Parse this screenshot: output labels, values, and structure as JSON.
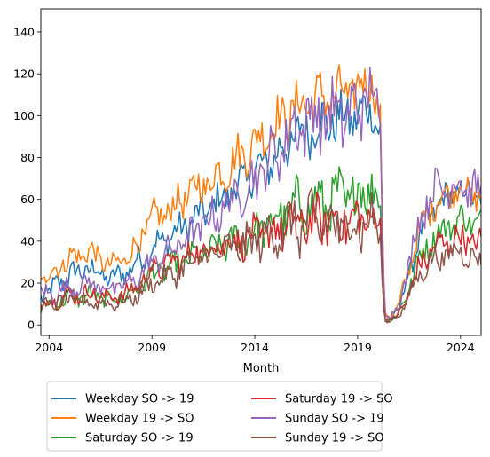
{
  "chart_data": {
    "type": "line",
    "xlabel": "Month",
    "ylabel": "",
    "xlim": [
      2003.6,
      2025.0
    ],
    "ylim": [
      -5,
      151
    ],
    "xticks": [
      {
        "value": 2004,
        "label": "2004"
      },
      {
        "value": 2009,
        "label": "2009"
      },
      {
        "value": 2014,
        "label": "2014"
      },
      {
        "value": 2019,
        "label": "2019"
      },
      {
        "value": 2024,
        "label": "2024"
      }
    ],
    "yticks": [
      {
        "value": 0,
        "label": "0"
      },
      {
        "value": 20,
        "label": "20"
      },
      {
        "value": 40,
        "label": "40"
      },
      {
        "value": 60,
        "label": "60"
      },
      {
        "value": 80,
        "label": "80"
      },
      {
        "value": 100,
        "label": "100"
      },
      {
        "value": 120,
        "label": "120"
      },
      {
        "value": 140,
        "label": "140"
      }
    ],
    "grid": false,
    "legend_position": "bottom",
    "legend_columns": 2,
    "series": [
      {
        "name": "Weekday SO -> 19",
        "color": "#1f77b4",
        "x": [
          2003.6,
          2004,
          2005,
          2006,
          2007,
          2008,
          2009,
          2010,
          2011,
          2012,
          2013,
          2014,
          2015,
          2016,
          2017,
          2018,
          2019,
          2019.7,
          2020.1,
          2020.3,
          2020.6,
          2021,
          2021.5,
          2022,
          2022.5,
          2023,
          2023.5,
          2024,
          2024.5,
          2025
        ],
        "y": [
          14,
          16,
          24,
          27,
          22,
          27,
          37,
          43,
          50,
          57,
          65,
          73,
          80,
          90,
          95,
          98,
          100,
          104,
          90,
          5,
          3,
          8,
          25,
          42,
          52,
          58,
          62,
          64,
          62,
          60
        ],
        "amp": [
          4,
          4,
          5,
          5,
          4,
          5,
          6,
          6,
          7,
          7,
          8,
          8,
          9,
          10,
          10,
          10,
          10,
          8,
          8,
          1,
          1,
          2,
          4,
          5,
          6,
          6,
          6,
          6,
          6,
          6
        ]
      },
      {
        "name": "Weekday 19 -> SO",
        "color": "#ff7f0e",
        "x": [
          2003.6,
          2004,
          2005,
          2006,
          2007,
          2008,
          2009,
          2010,
          2011,
          2012,
          2013,
          2014,
          2015,
          2016,
          2017,
          2018,
          2019,
          2019.7,
          2020.1,
          2020.3,
          2020.6,
          2021,
          2021.5,
          2022,
          2022.5,
          2023,
          2023.5,
          2024,
          2024.5,
          2025
        ],
        "y": [
          21,
          24,
          32,
          35,
          28,
          34,
          50,
          56,
          64,
          70,
          78,
          87,
          96,
          104,
          108,
          110,
          112,
          118,
          95,
          6,
          4,
          9,
          28,
          45,
          55,
          60,
          64,
          66,
          63,
          60
        ],
        "amp": [
          4,
          4,
          5,
          5,
          4,
          5,
          7,
          7,
          8,
          8,
          9,
          9,
          10,
          10,
          10,
          10,
          10,
          8,
          8,
          1,
          1,
          2,
          4,
          5,
          6,
          6,
          6,
          6,
          6,
          6
        ]
      },
      {
        "name": "Saturday SO -> 19",
        "color": "#2ca02c",
        "x": [
          2003.6,
          2004,
          2005,
          2006,
          2007,
          2008,
          2009,
          2010,
          2011,
          2012,
          2013,
          2014,
          2015,
          2016,
          2017,
          2018,
          2019,
          2019.7,
          2020.1,
          2020.3,
          2020.6,
          2021,
          2021.5,
          2022,
          2022.5,
          2023,
          2023.5,
          2024,
          2024.5,
          2025
        ],
        "y": [
          8,
          10,
          13,
          14,
          12,
          15,
          24,
          28,
          32,
          36,
          40,
          44,
          50,
          56,
          58,
          60,
          62,
          68,
          55,
          3,
          2,
          5,
          18,
          32,
          40,
          44,
          48,
          50,
          50,
          48
        ],
        "amp": [
          3,
          3,
          4,
          4,
          3,
          4,
          5,
          5,
          6,
          6,
          7,
          7,
          9,
          11,
          11,
          12,
          12,
          10,
          8,
          1,
          1,
          2,
          4,
          5,
          6,
          6,
          6,
          6,
          6,
          6
        ]
      },
      {
        "name": "Saturday 19 -> SO",
        "color": "#d62728",
        "x": [
          2003.6,
          2004,
          2005,
          2006,
          2007,
          2008,
          2009,
          2010,
          2011,
          2012,
          2013,
          2014,
          2015,
          2016,
          2017,
          2018,
          2019,
          2019.7,
          2020.1,
          2020.3,
          2020.6,
          2021,
          2021.5,
          2022,
          2022.5,
          2023,
          2023.5,
          2024,
          2024.5,
          2025
        ],
        "y": [
          10,
          11,
          14,
          15,
          13,
          16,
          26,
          30,
          34,
          38,
          40,
          42,
          45,
          48,
          50,
          50,
          50,
          52,
          45,
          3,
          2,
          5,
          15,
          28,
          35,
          38,
          40,
          42,
          40,
          38
        ],
        "amp": [
          3,
          3,
          4,
          4,
          3,
          4,
          5,
          5,
          6,
          6,
          7,
          8,
          9,
          10,
          10,
          10,
          10,
          8,
          7,
          1,
          1,
          2,
          4,
          5,
          6,
          6,
          6,
          6,
          6,
          6
        ]
      },
      {
        "name": "Sunday SO -> 19",
        "color": "#9467bd",
        "x": [
          2003.6,
          2004,
          2005,
          2006,
          2007,
          2008,
          2009,
          2010,
          2011,
          2012,
          2013,
          2014,
          2015,
          2016,
          2017,
          2018,
          2019,
          2019.7,
          2020.1,
          2020.3,
          2020.6,
          2021,
          2021.5,
          2022,
          2022.5,
          2023,
          2023.5,
          2024,
          2024.5,
          2025
        ],
        "y": [
          16,
          14,
          18,
          20,
          17,
          20,
          30,
          36,
          44,
          52,
          60,
          70,
          82,
          95,
          100,
          100,
          102,
          115,
          90,
          6,
          4,
          9,
          30,
          50,
          62,
          66,
          66,
          68,
          65,
          62
        ],
        "amp": [
          4,
          4,
          4,
          4,
          4,
          4,
          5,
          6,
          7,
          8,
          9,
          10,
          12,
          14,
          14,
          14,
          14,
          12,
          10,
          1,
          1,
          2,
          5,
          7,
          8,
          8,
          8,
          8,
          8,
          8
        ]
      },
      {
        "name": "Sunday 19 -> SO",
        "color": "#8c564b",
        "x": [
          2003.6,
          2004,
          2005,
          2006,
          2007,
          2008,
          2009,
          2010,
          2011,
          2012,
          2013,
          2014,
          2015,
          2016,
          2017,
          2018,
          2019,
          2019.7,
          2020.1,
          2020.3,
          2020.6,
          2021,
          2021.5,
          2022,
          2022.5,
          2023,
          2023.5,
          2024,
          2024.5,
          2025
        ],
        "y": [
          9,
          10,
          12,
          11,
          10,
          12,
          20,
          24,
          30,
          34,
          37,
          40,
          44,
          48,
          48,
          47,
          48,
          50,
          42,
          3,
          2,
          5,
          14,
          24,
          30,
          32,
          34,
          36,
          32,
          30
        ],
        "amp": [
          3,
          3,
          3,
          3,
          3,
          3,
          4,
          5,
          6,
          6,
          7,
          8,
          10,
          12,
          12,
          12,
          12,
          10,
          8,
          1,
          1,
          2,
          3,
          4,
          5,
          5,
          5,
          5,
          5,
          5
        ]
      }
    ]
  }
}
